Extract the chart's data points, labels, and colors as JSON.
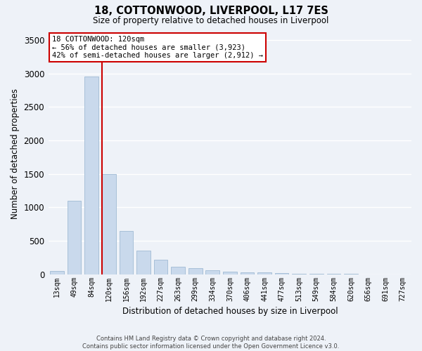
{
  "title": "18, COTTONWOOD, LIVERPOOL, L17 7ES",
  "subtitle": "Size of property relative to detached houses in Liverpool",
  "xlabel": "Distribution of detached houses by size in Liverpool",
  "ylabel": "Number of detached properties",
  "footer_line1": "Contains HM Land Registry data © Crown copyright and database right 2024.",
  "footer_line2": "Contains public sector information licensed under the Open Government Licence v3.0.",
  "annotation_line1": "18 COTTONWOOD: 120sqm",
  "annotation_line2": "← 56% of detached houses are smaller (3,923)",
  "annotation_line3": "42% of semi-detached houses are larger (2,912) →",
  "bar_labels": [
    "13sqm",
    "49sqm",
    "84sqm",
    "120sqm",
    "156sqm",
    "192sqm",
    "227sqm",
    "263sqm",
    "299sqm",
    "334sqm",
    "370sqm",
    "406sqm",
    "441sqm",
    "477sqm",
    "513sqm",
    "549sqm",
    "584sqm",
    "620sqm",
    "656sqm",
    "691sqm",
    "727sqm"
  ],
  "bar_values": [
    50,
    1100,
    2950,
    1500,
    650,
    350,
    220,
    110,
    95,
    55,
    40,
    30,
    25,
    15,
    5,
    5,
    3,
    2,
    0,
    0,
    0
  ],
  "bar_color": "#c9d9ec",
  "bar_edge_color": "#a8c0d8",
  "vline_color": "#cc0000",
  "vline_x_index": 3,
  "annotation_box_edge_color": "#cc0000",
  "background_color": "#eef2f8",
  "grid_color": "#ffffff",
  "ylim": [
    0,
    3600
  ],
  "yticks": [
    0,
    500,
    1000,
    1500,
    2000,
    2500,
    3000,
    3500
  ]
}
